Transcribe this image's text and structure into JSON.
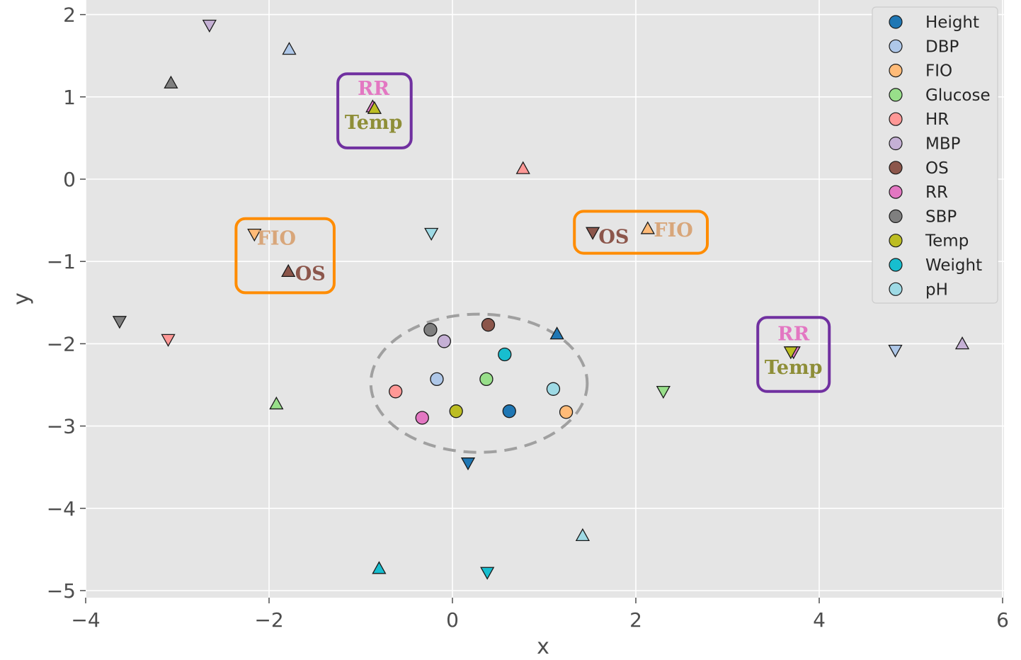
{
  "chart_data": {
    "type": "scatter",
    "xlabel": "x",
    "ylabel": "y",
    "xlim": [
      -4,
      6
    ],
    "ylim": [
      -5,
      2
    ],
    "x_ticks": [
      -4,
      -2,
      0,
      2,
      4,
      6
    ],
    "y_ticks": [
      2,
      1,
      0,
      -1,
      -2,
      -3,
      -4,
      -5
    ],
    "x_tick_labels": [
      "−4",
      "−2",
      "0",
      "2",
      "4",
      "6"
    ],
    "y_tick_labels": [
      "2",
      "1",
      "0",
      "−1",
      "−2",
      "−3",
      "−4",
      "−5"
    ],
    "grid": true,
    "legend_position": "top-right",
    "series": [
      {
        "name": "Height",
        "color": "#1f77b4",
        "circle": [
          0.62,
          -2.82
        ],
        "triangle_up": [
          1.14,
          -1.88
        ],
        "triangle_down": [
          0.17,
          -3.45
        ]
      },
      {
        "name": "DBP",
        "color": "#aec7e8",
        "circle": [
          -0.17,
          -2.43
        ],
        "triangle_up": [
          -1.78,
          1.58
        ],
        "triangle_down": [
          4.83,
          -2.08
        ]
      },
      {
        "name": "FIO",
        "color": "#ffbb78",
        "circle": [
          1.24,
          -2.83
        ],
        "triangle_up": [
          2.13,
          -0.6
        ],
        "triangle_down": [
          -2.16,
          -0.67
        ]
      },
      {
        "name": "Glucose",
        "color": "#98df8a",
        "circle": [
          0.37,
          -2.43
        ],
        "triangle_up": [
          -1.92,
          -2.73
        ],
        "triangle_down": [
          2.3,
          -2.58
        ]
      },
      {
        "name": "HR",
        "color": "#ff9896",
        "circle": [
          -0.62,
          -2.58
        ],
        "triangle_up": [
          0.77,
          0.13
        ],
        "triangle_down": [
          -3.1,
          -1.95
        ]
      },
      {
        "name": "MBP",
        "color": "#c5b0d5",
        "circle": [
          -0.09,
          -1.97
        ],
        "triangle_up": [
          5.56,
          -2.0
        ],
        "triangle_down": [
          -2.65,
          1.87
        ]
      },
      {
        "name": "OS",
        "color": "#8c564b",
        "circle": [
          0.39,
          -1.77
        ],
        "triangle_up": [
          -1.79,
          -1.12
        ],
        "triangle_down": [
          1.53,
          -0.65
        ]
      },
      {
        "name": "RR",
        "color": "#e377c2",
        "circle": [
          -0.33,
          -2.9
        ],
        "triangle_up": [
          -0.87,
          0.88
        ],
        "triangle_down": [
          3.72,
          -2.1
        ]
      },
      {
        "name": "SBP",
        "color": "#7f7f7f",
        "circle": [
          -0.24,
          -1.83
        ],
        "triangle_up": [
          -3.07,
          1.17
        ],
        "triangle_down": [
          -3.63,
          -1.73
        ]
      },
      {
        "name": "Temp",
        "color": "#bcbd22",
        "circle": [
          0.04,
          -2.82
        ],
        "triangle_up": [
          -0.85,
          0.86
        ],
        "triangle_down": [
          3.69,
          -2.1
        ]
      },
      {
        "name": "Weight",
        "color": "#17becf",
        "circle": [
          0.57,
          -2.13
        ],
        "triangle_up": [
          -0.8,
          -4.73
        ],
        "triangle_down": [
          0.38,
          -4.78
        ]
      },
      {
        "name": "pH",
        "color": "#9edae5",
        "circle": [
          1.1,
          -2.55
        ],
        "triangle_up": [
          1.42,
          -4.33
        ],
        "triangle_down": [
          -0.23,
          -0.66
        ]
      }
    ],
    "annotations": [
      {
        "text": "RR",
        "x": -0.86,
        "y": 1.1,
        "color": "#e377c2"
      },
      {
        "text": "Temp",
        "x": -0.86,
        "y": 0.69,
        "color": "#8e8e38"
      },
      {
        "text": "RR",
        "x": 3.72,
        "y": -1.88,
        "color": "#e377c2"
      },
      {
        "text": "Temp",
        "x": 3.72,
        "y": -2.29,
        "color": "#8e8e38"
      },
      {
        "text": "FIO",
        "x": -1.92,
        "y": -0.72,
        "color": "#d8a67a"
      },
      {
        "text": "OS",
        "x": -1.55,
        "y": -1.15,
        "color": "#8c564b"
      },
      {
        "text": "OS",
        "x": 1.76,
        "y": -0.7,
        "color": "#8c564b"
      },
      {
        "text": "FIO",
        "x": 2.41,
        "y": -0.62,
        "color": "#d8a67a"
      }
    ],
    "highlight_boxes": [
      {
        "x0": -1.25,
        "x1": -0.45,
        "y0": 0.38,
        "y1": 1.28,
        "color": "#7030a0"
      },
      {
        "x0": 3.33,
        "x1": 4.11,
        "y0": -2.58,
        "y1": -1.68,
        "color": "#7030a0"
      },
      {
        "x0": -2.36,
        "x1": -1.29,
        "y0": -1.38,
        "y1": -0.48,
        "color": "#ff8c00"
      },
      {
        "x0": 1.33,
        "x1": 2.78,
        "y0": -0.9,
        "y1": -0.39,
        "color": "#ff8c00"
      }
    ],
    "cluster_ellipse": {
      "cx": 0.29,
      "cy": -2.48,
      "rx": 1.18,
      "ry": 0.84,
      "color": "#a0a0a0"
    }
  },
  "colors": {
    "plot_background": "#e5e5e5",
    "grid": "#ffffff",
    "marker_edge": "#1a1a1a"
  }
}
